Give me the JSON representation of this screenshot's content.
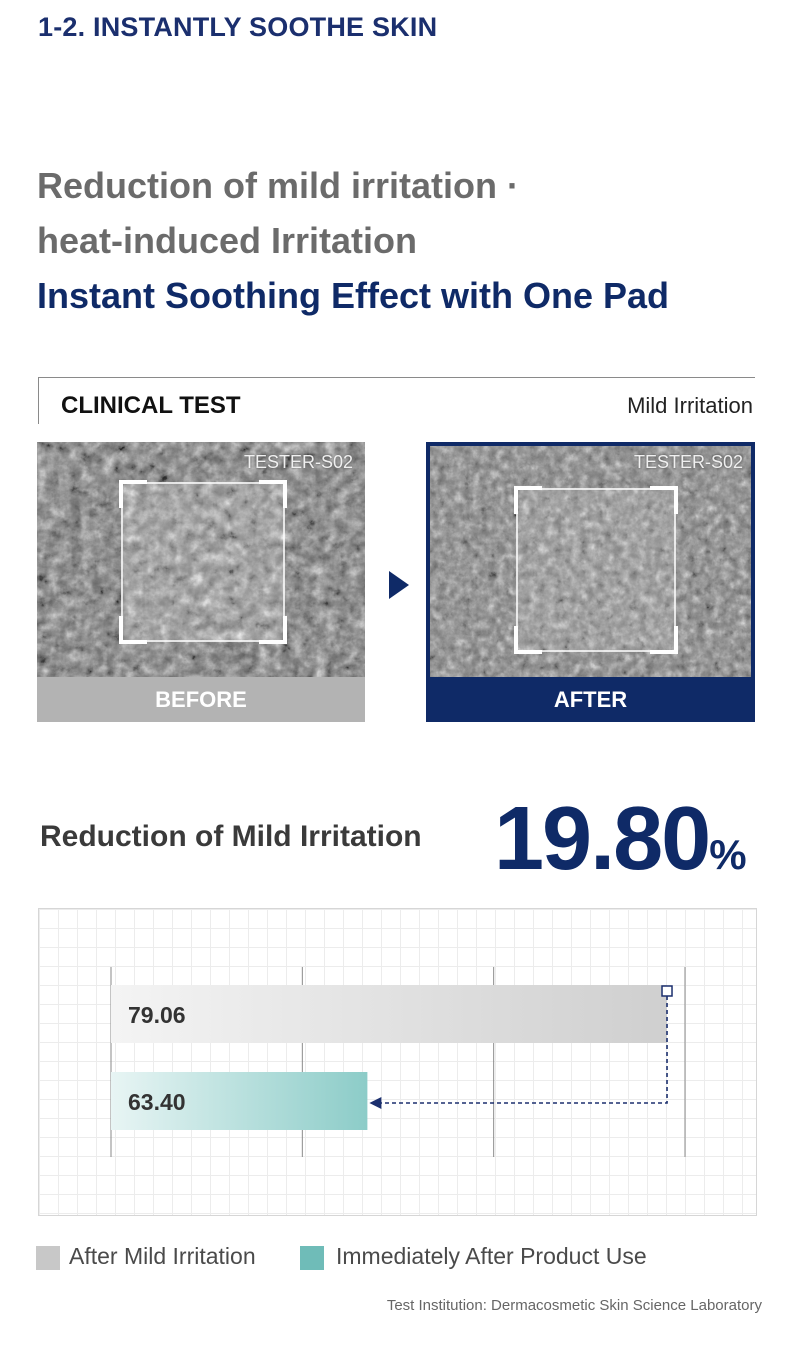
{
  "section": {
    "title": "1-2. INSTANTLY SOOTHE SKIN"
  },
  "headline": {
    "line1": "Reduction of mild irritation ·",
    "line2": "heat-induced Irritation",
    "line3": "Instant Soothing Effect with One Pad"
  },
  "clinical": {
    "label": "CLINICAL TEST",
    "condition": "Mild Irritation",
    "before": {
      "tester": "TESTER-S02",
      "label": "BEFORE"
    },
    "after": {
      "tester": "TESTER-S02",
      "label": "AFTER"
    }
  },
  "stat": {
    "label": "Reduction of Mild Irritation",
    "value": "19.80",
    "unit": "%"
  },
  "chart_data": {
    "type": "bar",
    "orientation": "horizontal",
    "categories": [
      "After Mild Irritation",
      "Immediately After Product Use"
    ],
    "values": [
      79.06,
      63.4
    ],
    "value_labels": [
      "79.06",
      "63.40"
    ],
    "xlim": [
      50,
      80
    ],
    "legend": "bottom",
    "colors": [
      "#c8c8c8",
      "#6fbcb8"
    ]
  },
  "legend": {
    "item1": "After Mild Irritation",
    "item2": "Immediately After Product Use"
  },
  "footer": {
    "institution": "Test Institution: Dermacosmetic Skin Science Laboratory"
  },
  "colors": {
    "navy": "#0f2a67",
    "teal": "#6fbcb8",
    "gray": "#c8c8c8"
  }
}
